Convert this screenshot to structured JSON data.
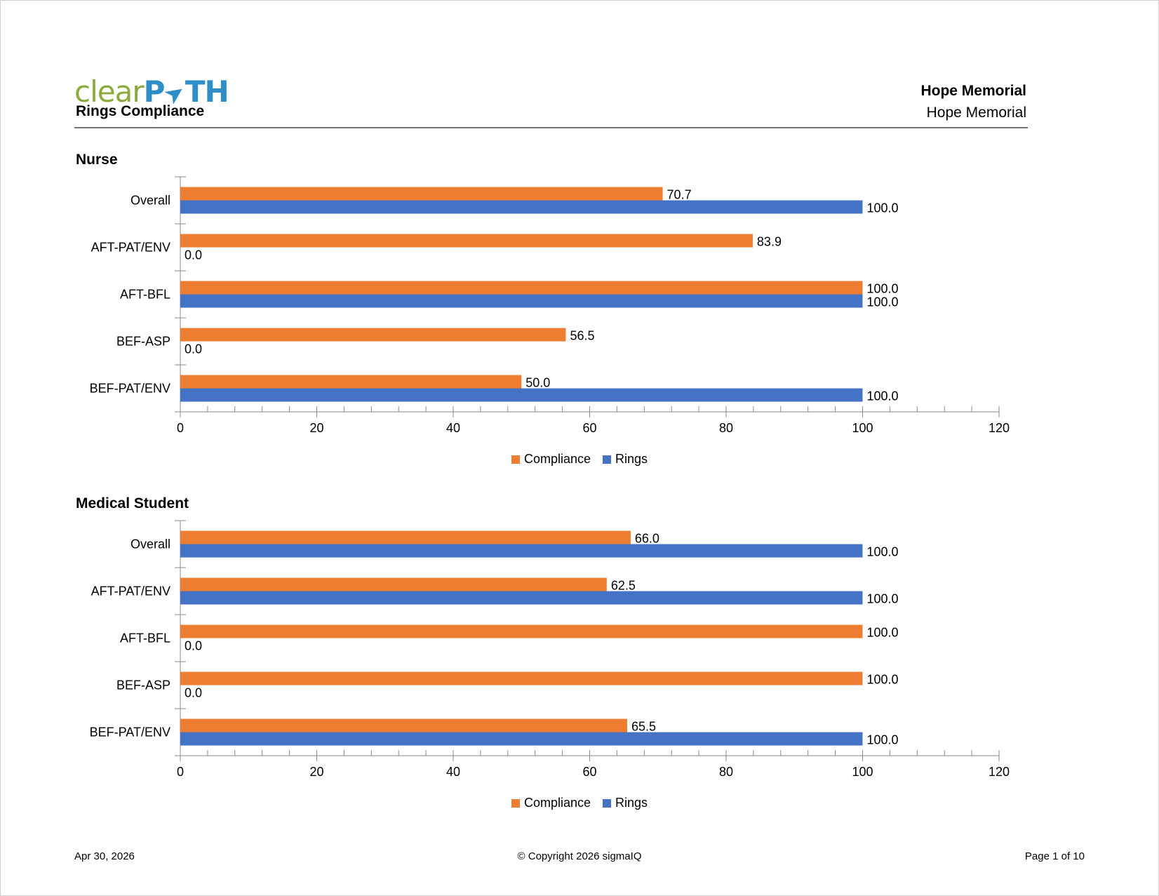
{
  "header": {
    "logo_text_a": "clear",
    "logo_text_b": "P",
    "logo_text_c": "TH",
    "report_title": "Rings Compliance",
    "facility_bold": "Hope Memorial",
    "facility": "Hope Memorial"
  },
  "colors": {
    "compliance": "#ed7d31",
    "rings": "#4472c4"
  },
  "legend": {
    "compliance": "Compliance",
    "rings": "Rings"
  },
  "chart_data": [
    {
      "type": "bar",
      "orientation": "horizontal",
      "title": "Nurse",
      "categories": [
        "Overall",
        "AFT-PAT/ENV",
        "AFT-BFL",
        "BEF-ASP",
        "BEF-PAT/ENV"
      ],
      "series": [
        {
          "name": "Compliance",
          "values": [
            70.7,
            83.9,
            100.0,
            56.5,
            50.0
          ]
        },
        {
          "name": "Rings",
          "values": [
            100.0,
            0.0,
            100.0,
            0.0,
            100.0
          ]
        }
      ],
      "xlim": [
        0,
        120
      ],
      "xticks": [
        0,
        20,
        40,
        60,
        80,
        100,
        120
      ],
      "legend_position": "bottom"
    },
    {
      "type": "bar",
      "orientation": "horizontal",
      "title": "Medical Student",
      "categories": [
        "Overall",
        "AFT-PAT/ENV",
        "AFT-BFL",
        "BEF-ASP",
        "BEF-PAT/ENV"
      ],
      "series": [
        {
          "name": "Compliance",
          "values": [
            66.0,
            62.5,
            100.0,
            100.0,
            65.5
          ]
        },
        {
          "name": "Rings",
          "values": [
            100.0,
            100.0,
            0.0,
            0.0,
            100.0
          ]
        }
      ],
      "xlim": [
        0,
        120
      ],
      "xticks": [
        0,
        20,
        40,
        60,
        80,
        100,
        120
      ],
      "legend_position": "bottom"
    }
  ],
  "footer": {
    "date": "Apr 30, 2026",
    "copyright": "© Copyright 2026 sigmaIQ",
    "page": "Page 1 of 10"
  }
}
